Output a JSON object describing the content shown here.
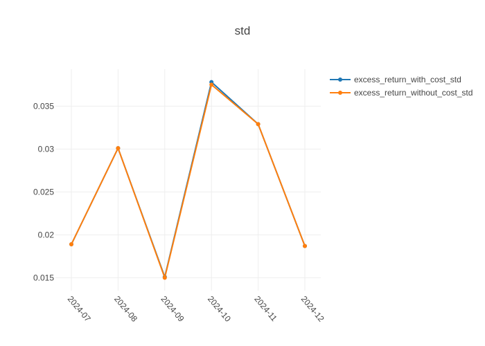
{
  "chart_data": {
    "type": "line",
    "title": "std",
    "xlabel": "",
    "ylabel": "",
    "x": [
      "2024-07",
      "2024-08",
      "2024-09",
      "2024-10",
      "2024-11",
      "2024-12"
    ],
    "ylim": [
      0.0135,
      0.0393
    ],
    "yticks": [
      0.015,
      0.02,
      0.025,
      0.03,
      0.035
    ],
    "ytick_labels": [
      "0.015",
      "0.02",
      "0.025",
      "0.03",
      "0.035"
    ],
    "grid": true,
    "legend_position": "top-right",
    "series": [
      {
        "name": "excess_return_with_cost_std",
        "color": "#1f77b4",
        "values": [
          0.0189,
          0.0301,
          0.0151,
          0.0378,
          0.0329,
          0.0187
        ]
      },
      {
        "name": "excess_return_without_cost_std",
        "color": "#ff7f0e",
        "values": [
          0.0189,
          0.0301,
          0.015,
          0.0375,
          0.0329,
          0.0187
        ]
      }
    ]
  }
}
